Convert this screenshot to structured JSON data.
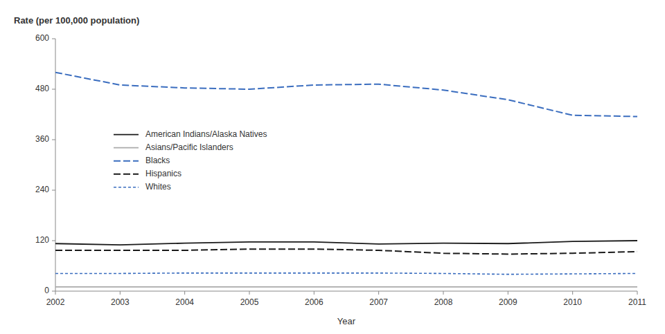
{
  "chart_data": {
    "type": "line",
    "x_label": "Year",
    "y_label": "Rate (per 100,000 population)",
    "x": [
      2002,
      2003,
      2004,
      2005,
      2006,
      2007,
      2008,
      2009,
      2010,
      2011
    ],
    "series": [
      {
        "name": "American Indians/Alaska Natives",
        "color": "#1a1a1a",
        "line_style": "solid",
        "values": [
          113,
          110,
          114,
          117,
          117,
          112,
          114,
          113,
          118,
          120
        ]
      },
      {
        "name": "Asians/Pacific Islanders",
        "color": "#aaaaaa",
        "line_style": "solid",
        "values": [
          10,
          10,
          10,
          10,
          10,
          10,
          10,
          10,
          10,
          10
        ]
      },
      {
        "name": "Blacks",
        "color": "#3a6dbf",
        "line_style": "dashed",
        "values": [
          520,
          490,
          483,
          480,
          490,
          492,
          478,
          455,
          418,
          415
        ]
      },
      {
        "name": "Hispanics",
        "color": "#1a1a1a",
        "line_style": "dashed",
        "values": [
          97,
          97,
          97,
          100,
          100,
          97,
          90,
          88,
          90,
          94
        ]
      },
      {
        "name": "Whites",
        "color": "#3a6dbf",
        "line_style": "dotted",
        "values": [
          42,
          42,
          43,
          43,
          43,
          43,
          42,
          40,
          41,
          42
        ]
      }
    ],
    "xlim": [
      2002,
      2011
    ],
    "xticks": [
      2002,
      2003,
      2004,
      2005,
      2006,
      2007,
      2008,
      2009,
      2010,
      2011
    ],
    "ylim": [
      0,
      600
    ],
    "yticks": [
      0,
      120,
      240,
      360,
      480,
      600
    ],
    "grid": false,
    "legend": "upper left"
  }
}
